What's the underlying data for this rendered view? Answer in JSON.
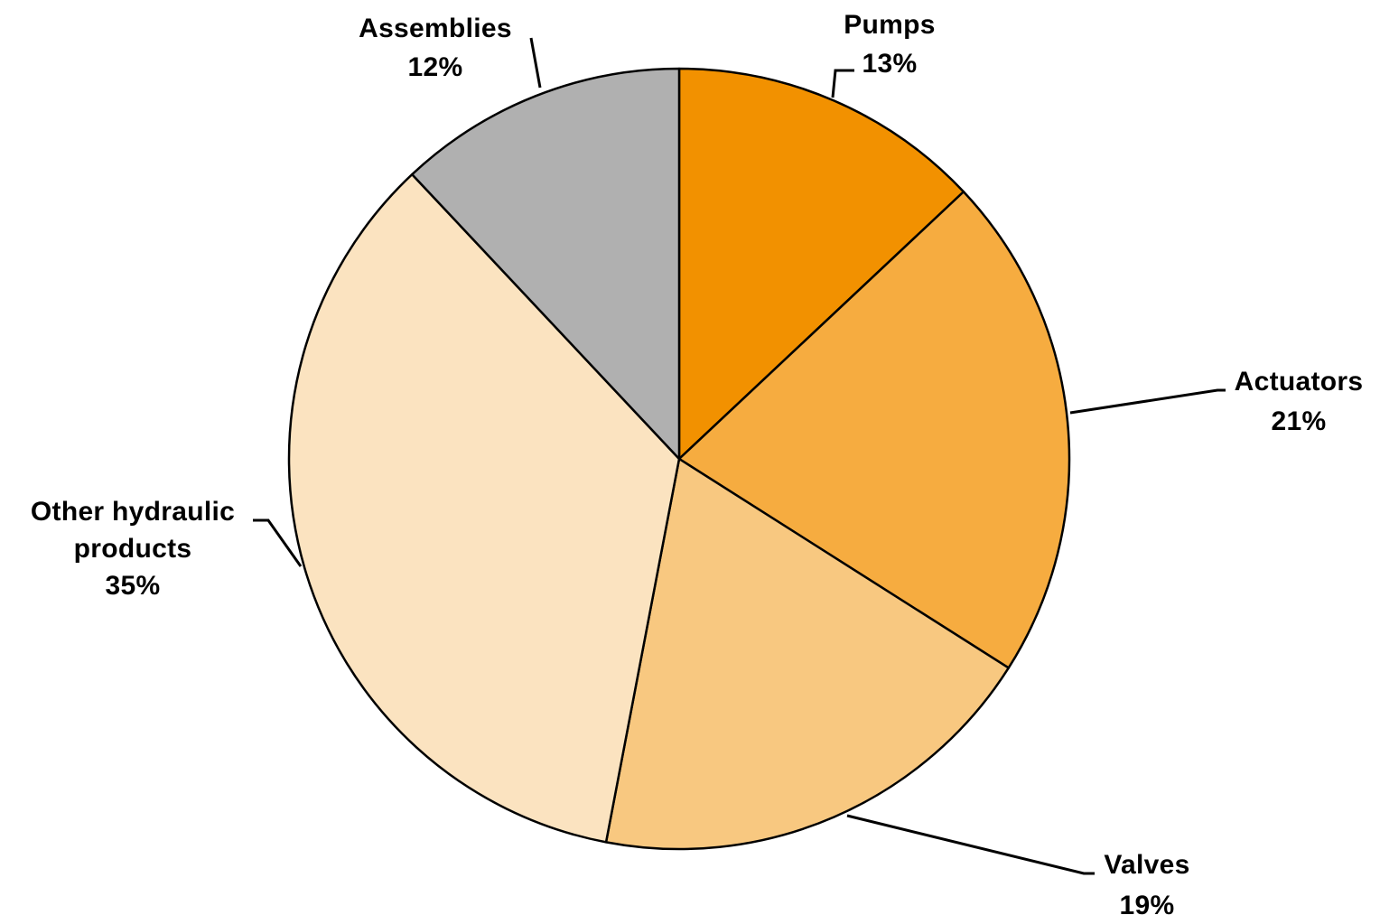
{
  "chart_data": {
    "type": "pie",
    "title": "",
    "slices": [
      {
        "label": "Pumps",
        "value": 13,
        "pct_label": "13%",
        "color": "#F29100"
      },
      {
        "label": "Actuators",
        "value": 21,
        "pct_label": "21%",
        "color": "#F6AC40"
      },
      {
        "label": "Valves",
        "value": 19,
        "pct_label": "19%",
        "color": "#F8C880"
      },
      {
        "label_lines": [
          "Other hydraulic",
          "products"
        ],
        "label": "Other hydraulic products",
        "value": 35,
        "pct_label": "35%",
        "color": "#FBE3C0"
      },
      {
        "label": "Assemblies",
        "value": 12,
        "pct_label": "12%",
        "color": "#B0B0B0"
      }
    ],
    "start_angle": "12 o'clock",
    "direction": "clockwise",
    "legend": "none",
    "border_color": "#000000"
  }
}
